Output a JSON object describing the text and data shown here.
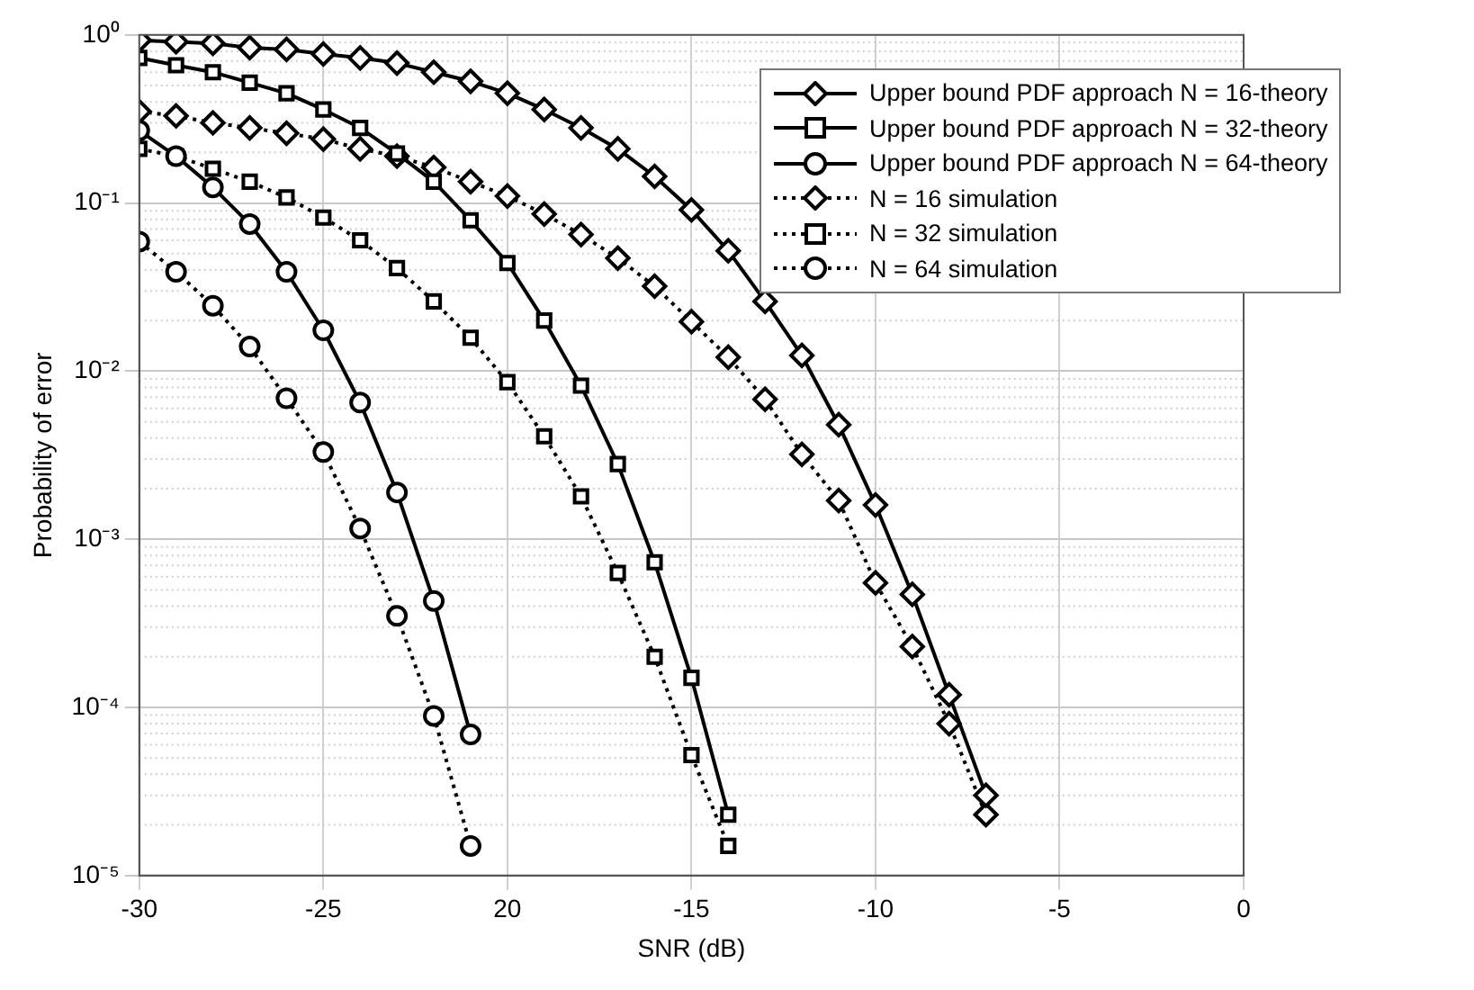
{
  "chart_data": {
    "type": "line",
    "xlabel": "SNR (dB)",
    "ylabel": "Probability of error",
    "xlim": [
      -30,
      0
    ],
    "xticks": [
      -30,
      -25,
      {
        "value": -20,
        "label": "20"
      },
      -15,
      -10,
      -5,
      0
    ],
    "ylim": [
      1e-05,
      1
    ],
    "yticks": [
      {
        "value": 1e-05,
        "label": "10⁻⁵"
      },
      {
        "value": 0.0001,
        "label": "10⁻⁴"
      },
      {
        "value": 0.001,
        "label": "10⁻³"
      },
      {
        "value": 0.01,
        "label": "10⁻²"
      },
      {
        "value": 0.1,
        "label": "10⁻¹"
      },
      {
        "value": 1,
        "label": "10⁰"
      }
    ],
    "log": "y",
    "grid": true,
    "legend": "top right",
    "series": [
      {
        "name": "Upper bound PDF approach N = 16-theory",
        "color": "#000000",
        "marker": "diamond",
        "line_style": "solid",
        "x": [
          -30,
          -29,
          -28,
          -27,
          -26,
          -25,
          -24,
          -23,
          -22,
          -21,
          -20,
          -19,
          -18,
          -17,
          -16,
          -15,
          -14,
          -13,
          -12,
          -11,
          -10,
          -9,
          -8,
          -7
        ],
        "values": [
          0.93,
          0.91,
          0.89,
          0.84,
          0.82,
          0.77,
          0.73,
          0.68,
          0.6,
          0.53,
          0.45,
          0.36,
          0.28,
          0.21,
          0.144,
          0.091,
          0.052,
          0.026,
          0.0124,
          0.0048,
          0.0016,
          0.00047,
          0.000119,
          3e-05
        ]
      },
      {
        "name": "Upper bound PDF approach N = 32-theory",
        "color": "#000000",
        "marker": "square",
        "line_style": "solid",
        "x": [
          -30,
          -29,
          -28,
          -27,
          -26,
          -25,
          -24,
          -23,
          -22,
          -21,
          -20,
          -19,
          -18,
          -17,
          -16,
          -15,
          -14
        ],
        "values": [
          0.73,
          0.66,
          0.6,
          0.52,
          0.45,
          0.36,
          0.28,
          0.197,
          0.134,
          0.079,
          0.044,
          0.02,
          0.0082,
          0.0028,
          0.00073,
          0.00015,
          2.3e-05
        ]
      },
      {
        "name": "Upper bound PDF approach N = 64-theory",
        "color": "#000000",
        "marker": "circle",
        "line_style": "solid",
        "x": [
          -30,
          -29,
          -28,
          -27,
          -26,
          -25,
          -24,
          -23,
          -22,
          -21
        ],
        "values": [
          0.27,
          0.19,
          0.124,
          0.075,
          0.039,
          0.0175,
          0.0065,
          0.0019,
          0.00043,
          6.9e-05
        ]
      },
      {
        "name": "N = 16 simulation",
        "color": "#000000",
        "marker": "diamond",
        "line_style": "dotted",
        "x": [
          -30,
          -29,
          -28,
          -27,
          -26,
          -25,
          -24,
          -23,
          -22,
          -21,
          -20,
          -19,
          -18,
          -17,
          -16,
          -15,
          -14,
          -13,
          -12,
          -11,
          -10,
          -9,
          -8,
          -7
        ],
        "values": [
          0.35,
          0.33,
          0.3,
          0.28,
          0.26,
          0.24,
          0.21,
          0.19,
          0.163,
          0.134,
          0.11,
          0.086,
          0.065,
          0.047,
          0.032,
          0.0197,
          0.0121,
          0.0068,
          0.0032,
          0.0017,
          0.00055,
          0.00023,
          8e-05,
          2.3e-05
        ]
      },
      {
        "name": "N = 32 simulation",
        "color": "#000000",
        "marker": "square",
        "line_style": "dotted",
        "x": [
          -30,
          -29,
          -28,
          -27,
          -26,
          -25,
          -24,
          -23,
          -22,
          -21,
          -20,
          -19,
          -18,
          -17,
          -16,
          -15,
          -14
        ],
        "values": [
          0.21,
          0.19,
          0.16,
          0.134,
          0.108,
          0.082,
          0.06,
          0.041,
          0.026,
          0.0158,
          0.0086,
          0.0041,
          0.0018,
          0.00063,
          0.0002,
          5.2e-05,
          1.5e-05
        ]
      },
      {
        "name": "N = 64 simulation",
        "color": "#000000",
        "marker": "circle",
        "line_style": "dotted",
        "x": [
          -30,
          -29,
          -28,
          -27,
          -26,
          -25,
          -24,
          -23,
          -22,
          -21
        ],
        "values": [
          0.059,
          0.039,
          0.0245,
          0.014,
          0.0069,
          0.0033,
          0.00116,
          0.00035,
          8.9e-05,
          1.5e-05
        ]
      }
    ]
  }
}
